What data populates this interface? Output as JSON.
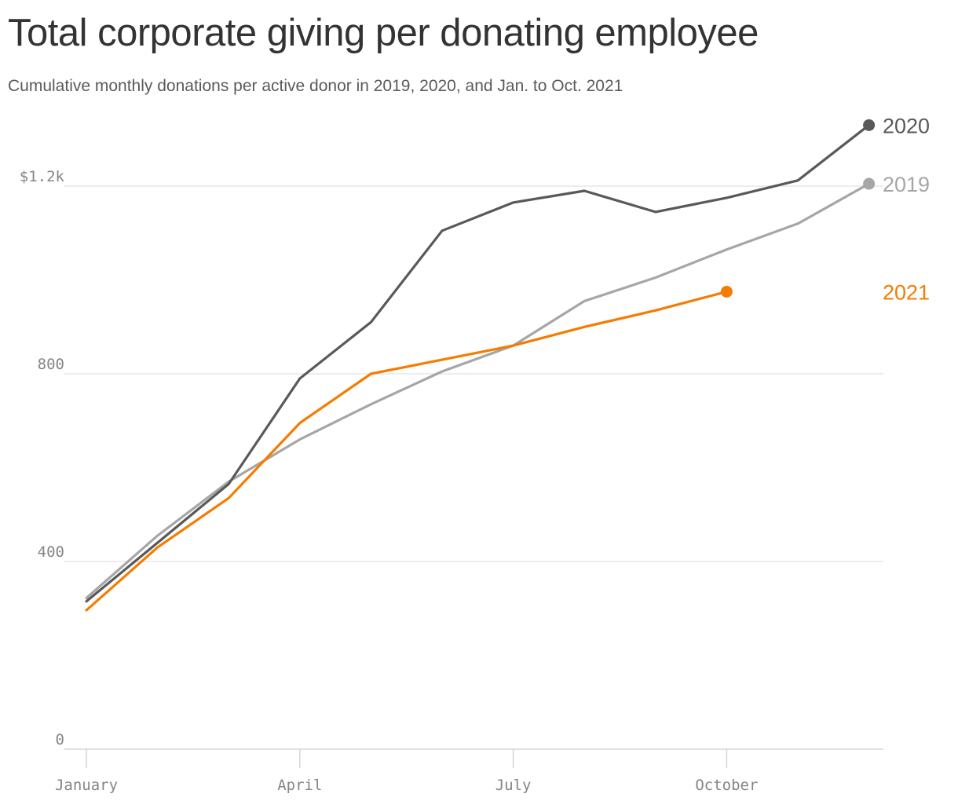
{
  "colors": {
    "series_2020": "#595959",
    "series_2019": "#a6a6a6",
    "series_2021": "#f57c00",
    "grid": "#e2e2e2",
    "axis_text": "#858585"
  },
  "chart_data": {
    "type": "line",
    "title": "Total corporate giving per donating employee",
    "subtitle": "Cumulative monthly donations per active donor in 2019, 2020, and Jan. to Oct. 2021",
    "x_months": [
      1,
      2,
      3,
      4,
      5,
      6,
      7,
      8,
      9,
      10,
      11,
      12
    ],
    "x_ticks": [
      {
        "month": 1,
        "label": "January"
      },
      {
        "month": 4,
        "label": "April"
      },
      {
        "month": 7,
        "label": "July"
      },
      {
        "month": 10,
        "label": "October"
      }
    ],
    "y_ticks": [
      {
        "value": 0,
        "label": "0"
      },
      {
        "value": 400,
        "label": "400"
      },
      {
        "value": 800,
        "label": "800"
      },
      {
        "value": 1200,
        "label": "$1.2k"
      }
    ],
    "ylim": [
      0,
      1200
    ],
    "grid": true,
    "series": [
      {
        "name": "2020",
        "color_key": "series_2020",
        "values": [
          315,
          440,
          565,
          790,
          910,
          1105,
          1165,
          1190,
          1145,
          1175,
          1212,
          1330
        ]
      },
      {
        "name": "2019",
        "color_key": "series_2019",
        "values": [
          322,
          455,
          570,
          660,
          735,
          805,
          860,
          955,
          1005,
          1065,
          1120,
          1205
        ]
      },
      {
        "name": "2021",
        "color_key": "series_2021",
        "values": [
          296,
          430,
          535,
          695,
          800,
          830,
          860,
          900,
          935,
          975
        ]
      }
    ]
  }
}
